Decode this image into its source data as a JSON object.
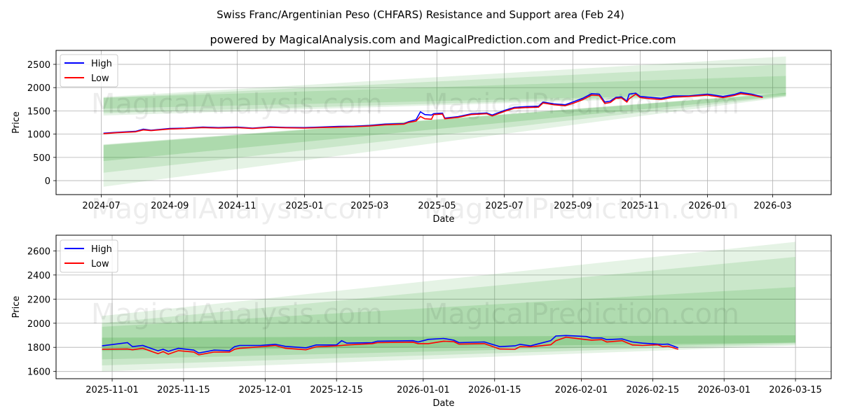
{
  "title": "Swiss Franc/Argentinian Peso (CHFARS) Resistance and Support area (Feb 24)",
  "subtitle": "powered by MagicalAnalysis.com and MagicalPrediction.com and Predict-Price.com",
  "watermarks": [
    "MagicalAnalysis.com",
    "MagicalPrediction.com"
  ],
  "colors": {
    "high": "#0000ff",
    "low": "#ff0000",
    "band": "#2ca02c",
    "grid": "#b0b0b0"
  },
  "chart_data": [
    {
      "type": "line",
      "xlabel": "Date",
      "ylabel": "Price",
      "ylim": [
        -300,
        2800
      ],
      "xlim": [
        "2024-05-21",
        "2026-04-23"
      ],
      "grid": true,
      "legend": {
        "position": "top-left",
        "entries": [
          "High",
          "Low"
        ]
      },
      "yticks": [
        0,
        500,
        1000,
        1500,
        2000,
        2500
      ],
      "xticks": [
        "2024-07",
        "2024-09",
        "2024-11",
        "2025-01",
        "2025-03",
        "2025-05",
        "2025-07",
        "2025-09",
        "2025-11",
        "2026-01",
        "2026-03"
      ],
      "bands": [
        {
          "start": "2024-07-03",
          "end": "2026-03-13",
          "start_range": [
            1400,
            1800
          ],
          "end_range": [
            1850,
            2670
          ],
          "opacity": 0.12
        },
        {
          "start": "2024-07-03",
          "end": "2026-03-13",
          "start_range": [
            1450,
            1780
          ],
          "end_range": [
            1870,
            2500
          ],
          "opacity": 0.14
        },
        {
          "start": "2024-07-03",
          "end": "2026-03-13",
          "start_range": [
            1550,
            1780
          ],
          "end_range": [
            1880,
            2250
          ],
          "opacity": 0.14
        },
        {
          "start": "2024-07-03",
          "end": "2026-03-13",
          "start_range": [
            -130,
            780
          ],
          "end_range": [
            1800,
            1890
          ],
          "opacity": 0.12
        },
        {
          "start": "2024-07-03",
          "end": "2026-03-13",
          "start_range": [
            170,
            770
          ],
          "end_range": [
            1815,
            1885
          ],
          "opacity": 0.14
        },
        {
          "start": "2024-07-03",
          "end": "2026-03-13",
          "start_range": [
            420,
            760
          ],
          "end_range": [
            1830,
            1880
          ],
          "opacity": 0.18
        }
      ],
      "series": {
        "dates": [
          "2024-07-03",
          "2024-07-15",
          "2024-08-01",
          "2024-08-08",
          "2024-08-15",
          "2024-09-01",
          "2024-09-15",
          "2024-10-01",
          "2024-10-15",
          "2024-11-01",
          "2024-11-15",
          "2024-12-01",
          "2024-12-15",
          "2025-01-01",
          "2025-01-15",
          "2025-02-01",
          "2025-02-15",
          "2025-03-01",
          "2025-03-15",
          "2025-04-01",
          "2025-04-05",
          "2025-04-12",
          "2025-04-16",
          "2025-04-20",
          "2025-04-26",
          "2025-04-28",
          "2025-05-01",
          "2025-05-06",
          "2025-05-08",
          "2025-05-20",
          "2025-06-01",
          "2025-06-15",
          "2025-06-20",
          "2025-07-01",
          "2025-07-10",
          "2025-07-20",
          "2025-08-01",
          "2025-08-05",
          "2025-08-15",
          "2025-08-25",
          "2025-09-01",
          "2025-09-10",
          "2025-09-18",
          "2025-09-25",
          "2025-09-30",
          "2025-10-05",
          "2025-10-10",
          "2025-10-15",
          "2025-10-20",
          "2025-10-22",
          "2025-10-28",
          "2025-11-01",
          "2025-11-10",
          "2025-11-20",
          "2025-12-01",
          "2025-12-15",
          "2026-01-01",
          "2026-01-15",
          "2026-01-25",
          "2026-01-31",
          "2026-02-10",
          "2026-02-20"
        ],
        "high": [
          1020,
          1040,
          1060,
          1105,
          1085,
          1120,
          1130,
          1150,
          1140,
          1150,
          1130,
          1155,
          1145,
          1140,
          1150,
          1165,
          1170,
          1185,
          1215,
          1225,
          1265,
          1310,
          1480,
          1420,
          1410,
          1440,
          1445,
          1450,
          1345,
          1375,
          1435,
          1455,
          1410,
          1510,
          1575,
          1590,
          1600,
          1690,
          1650,
          1630,
          1690,
          1770,
          1870,
          1860,
          1690,
          1710,
          1790,
          1800,
          1710,
          1860,
          1880,
          1810,
          1790,
          1770,
          1820,
          1820,
          1860,
          1810,
          1850,
          1895,
          1860,
          1800
        ],
        "low": [
          1010,
          1030,
          1050,
          1090,
          1075,
          1110,
          1120,
          1140,
          1130,
          1140,
          1120,
          1145,
          1135,
          1130,
          1140,
          1150,
          1160,
          1175,
          1200,
          1215,
          1250,
          1280,
          1380,
          1330,
          1320,
          1420,
          1425,
          1430,
          1330,
          1360,
          1420,
          1440,
          1390,
          1490,
          1555,
          1570,
          1580,
          1670,
          1630,
          1610,
          1660,
          1740,
          1840,
          1830,
          1660,
          1680,
          1770,
          1780,
          1690,
          1760,
          1860,
          1785,
          1760,
          1745,
          1795,
          1810,
          1840,
          1785,
          1830,
          1870,
          1840,
          1785
        ]
      }
    },
    {
      "type": "line",
      "xlabel": "Date",
      "ylabel": "Price",
      "ylim": [
        1540,
        2730
      ],
      "xlim": [
        "2025-10-21",
        "2026-03-22"
      ],
      "grid": true,
      "legend": {
        "position": "top-left",
        "entries": [
          "High",
          "Low"
        ]
      },
      "yticks": [
        1600,
        1800,
        2000,
        2200,
        2400,
        2600
      ],
      "xticks": [
        "2025-11-01",
        "2025-11-15",
        "2025-12-01",
        "2025-12-15",
        "2026-01-01",
        "2026-01-15",
        "2026-02-01",
        "2026-02-15",
        "2026-03-01",
        "2026-03-15"
      ],
      "bands": [
        {
          "start": "2025-10-30",
          "end": "2026-03-15",
          "start_range": [
            1600,
            2060
          ],
          "end_range": [
            1816,
            2675
          ],
          "opacity": 0.12
        },
        {
          "start": "2025-10-30",
          "end": "2026-03-15",
          "start_range": [
            1650,
            2000
          ],
          "end_range": [
            1828,
            2550
          ],
          "opacity": 0.14
        },
        {
          "start": "2025-10-30",
          "end": "2026-03-15",
          "start_range": [
            1700,
            1970
          ],
          "end_range": [
            1838,
            2300
          ],
          "opacity": 0.16
        },
        {
          "start": "2025-10-30",
          "end": "2026-03-15",
          "start_range": [
            1770,
            1880
          ],
          "end_range": [
            1840,
            1900
          ],
          "opacity": 0.22
        }
      ],
      "series": {
        "dates": [
          "2025-10-30",
          "2025-11-04",
          "2025-11-05",
          "2025-11-07",
          "2025-11-10",
          "2025-11-11",
          "2025-11-12",
          "2025-11-14",
          "2025-11-17",
          "2025-11-18",
          "2025-11-21",
          "2025-11-24",
          "2025-11-25",
          "2025-11-26",
          "2025-11-30",
          "2025-12-03",
          "2025-12-05",
          "2025-12-09",
          "2025-12-11",
          "2025-12-15",
          "2025-12-16",
          "2025-12-17",
          "2025-12-22",
          "2025-12-23",
          "2025-12-30",
          "2025-12-31",
          "2026-01-02",
          "2026-01-05",
          "2026-01-07",
          "2026-01-08",
          "2026-01-13",
          "2026-01-16",
          "2026-01-19",
          "2026-01-20",
          "2026-01-22",
          "2026-01-26",
          "2026-01-27",
          "2026-01-29",
          "2026-02-02",
          "2026-02-03",
          "2026-02-05",
          "2026-02-06",
          "2026-02-09",
          "2026-02-11",
          "2026-02-13",
          "2026-02-16",
          "2026-02-17",
          "2026-02-18",
          "2026-02-20"
        ],
        "high": [
          1812,
          1839,
          1806,
          1816,
          1771,
          1784,
          1767,
          1792,
          1777,
          1753,
          1777,
          1773,
          1806,
          1816,
          1816,
          1825,
          1808,
          1796,
          1820,
          1820,
          1855,
          1835,
          1839,
          1851,
          1855,
          1845,
          1866,
          1874,
          1859,
          1839,
          1845,
          1806,
          1812,
          1825,
          1812,
          1855,
          1894,
          1898,
          1890,
          1878,
          1878,
          1864,
          1870,
          1845,
          1835,
          1827,
          1825,
          1827,
          1796
        ],
        "low": [
          1784,
          1786,
          1780,
          1792,
          1747,
          1765,
          1743,
          1773,
          1761,
          1738,
          1761,
          1761,
          1784,
          1792,
          1804,
          1816,
          1792,
          1780,
          1804,
          1812,
          1816,
          1820,
          1831,
          1839,
          1843,
          1831,
          1831,
          1851,
          1847,
          1827,
          1831,
          1786,
          1784,
          1806,
          1804,
          1821,
          1855,
          1884,
          1864,
          1860,
          1864,
          1845,
          1855,
          1820,
          1816,
          1821,
          1806,
          1810,
          1784
        ]
      }
    }
  ]
}
